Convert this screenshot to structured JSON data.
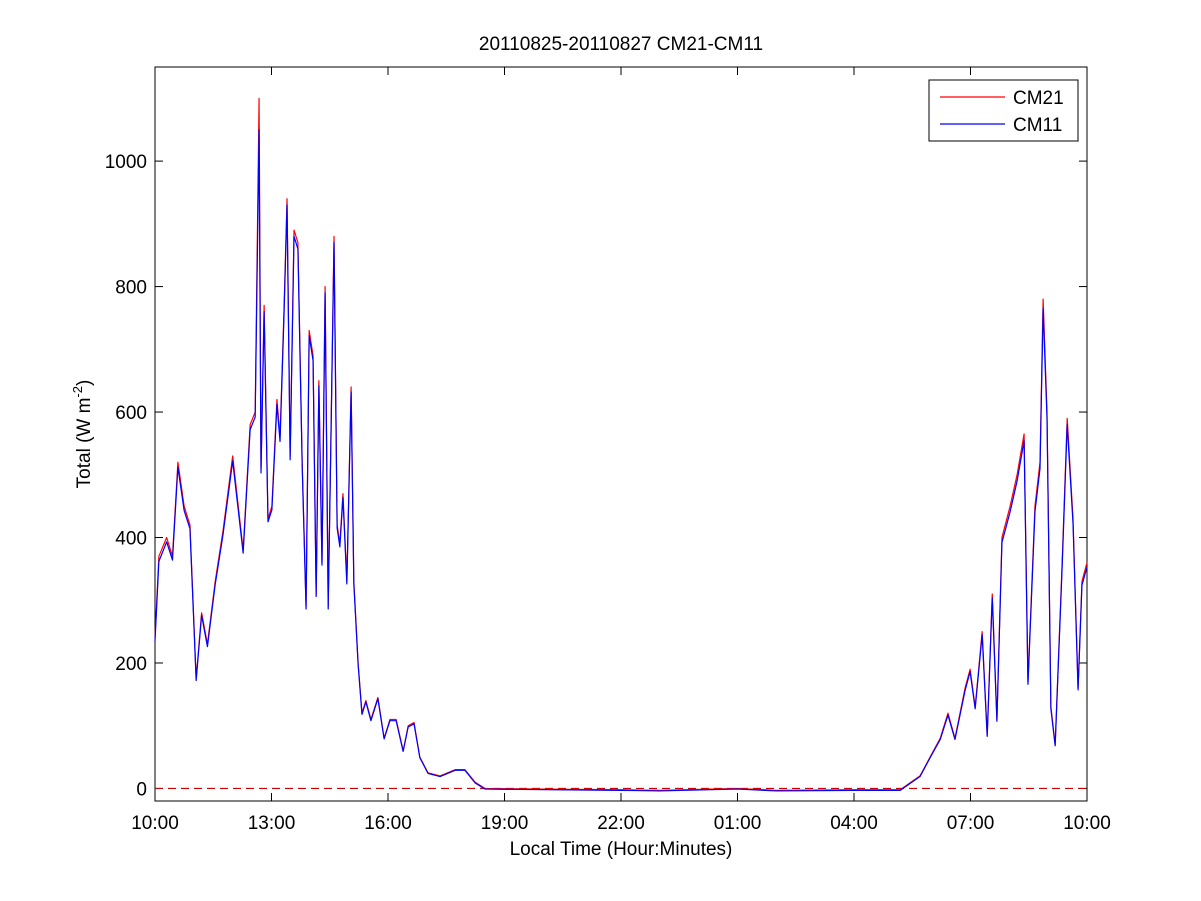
{
  "chart_data": {
    "type": "line",
    "title": "20110825-20110827 CM21-CM11",
    "xlabel": "Local Time (Hour:Minutes)",
    "ylabel": {
      "text": "Total (W m",
      "sup": "-2",
      "end": ")"
    },
    "x": [
      0,
      0.1,
      0.3,
      0.45,
      0.59,
      0.75,
      0.9,
      1.06,
      1.2,
      1.35,
      1.55,
      1.75,
      2.0,
      2.27,
      2.45,
      2.58,
      2.68,
      2.73,
      2.81,
      2.91,
      3.01,
      3.14,
      3.22,
      3.32,
      3.4,
      3.48,
      3.58,
      3.68,
      3.79,
      3.89,
      3.97,
      4.07,
      4.15,
      4.22,
      4.3,
      4.38,
      4.46,
      4.53,
      4.61,
      4.69,
      4.76,
      4.84,
      4.94,
      5.05,
      5.12,
      5.23,
      5.33,
      5.43,
      5.56,
      5.74,
      5.9,
      6.05,
      6.21,
      6.39,
      6.52,
      6.67,
      6.82,
      7.03,
      7.34,
      7.73,
      7.98,
      8.24,
      8.5,
      10,
      12,
      13,
      15,
      16,
      18,
      19.19,
      19.7,
      19.96,
      20.22,
      20.42,
      20.6,
      20.86,
      20.99,
      21.12,
      21.3,
      21.43,
      21.56,
      21.68,
      21.81,
      22.02,
      22.2,
      22.38,
      22.48,
      22.66,
      22.79,
      22.87,
      22.97,
      23.07,
      23.18,
      23.36,
      23.49,
      23.64,
      23.77,
      23.87,
      24
    ],
    "series": [
      {
        "name": "CM21",
        "color": "#ff0000",
        "values": [
          240,
          370,
          400,
          370,
          520,
          450,
          420,
          175,
          280,
          230,
          330,
          410,
          530,
          380,
          580,
          600,
          1100,
          510,
          770,
          430,
          450,
          620,
          560,
          760,
          940,
          530,
          890,
          870,
          520,
          290,
          730,
          690,
          310,
          650,
          360,
          800,
          290,
          560,
          880,
          420,
          390,
          470,
          330,
          640,
          330,
          200,
          120,
          140,
          110,
          145,
          80,
          110,
          110,
          60,
          100,
          105,
          50,
          25,
          20,
          30,
          30,
          10,
          0,
          -1,
          -2,
          -3,
          0,
          -3,
          -2,
          -2,
          20,
          50,
          80,
          120,
          80,
          160,
          190,
          130,
          250,
          85,
          310,
          110,
          400,
          450,
          500,
          565,
          170,
          450,
          520,
          780,
          600,
          130,
          70,
          360,
          590,
          430,
          160,
          330,
          360
        ]
      },
      {
        "name": "CM11",
        "color": "#0000ff",
        "values": [
          235,
          362,
          393,
          364,
          512,
          443,
          414,
          172,
          276,
          226,
          325,
          404,
          522,
          375,
          572,
          592,
          1050,
          503,
          760,
          425,
          444,
          612,
          553,
          750,
          930,
          524,
          880,
          860,
          514,
          286,
          722,
          682,
          306,
          642,
          356,
          790,
          286,
          553,
          870,
          415,
          385,
          464,
          326,
          632,
          326,
          198,
          118,
          138,
          108,
          143,
          79,
          108,
          108,
          59,
          98,
          103,
          49,
          24,
          19,
          29,
          29,
          9,
          -1,
          -2,
          -3,
          -4,
          -1,
          -4,
          -3,
          -3,
          19,
          49,
          78,
          117,
          78,
          156,
          186,
          127,
          245,
          83,
          304,
          107,
          392,
          441,
          490,
          554,
          166,
          441,
          510,
          765,
          590,
          127,
          68,
          353,
          580,
          422,
          157,
          324,
          353
        ]
      }
    ],
    "xlim": [
      0,
      24
    ],
    "xticks": [
      {
        "value": 0,
        "label": "10:00"
      },
      {
        "value": 3,
        "label": "13:00"
      },
      {
        "value": 6,
        "label": "16:00"
      },
      {
        "value": 9,
        "label": "19:00"
      },
      {
        "value": 12,
        "label": "22:00"
      },
      {
        "value": 15,
        "label": "01:00"
      },
      {
        "value": 18,
        "label": "04:00"
      },
      {
        "value": 21,
        "label": "07:00"
      },
      {
        "value": 24,
        "label": "10:00"
      }
    ],
    "ylim": [
      -20,
      1150
    ],
    "yticks": [
      0,
      200,
      400,
      600,
      800,
      1000
    ],
    "hline": 0,
    "hline_color": "#cc0000",
    "legend": "upper-right",
    "grid": false
  }
}
